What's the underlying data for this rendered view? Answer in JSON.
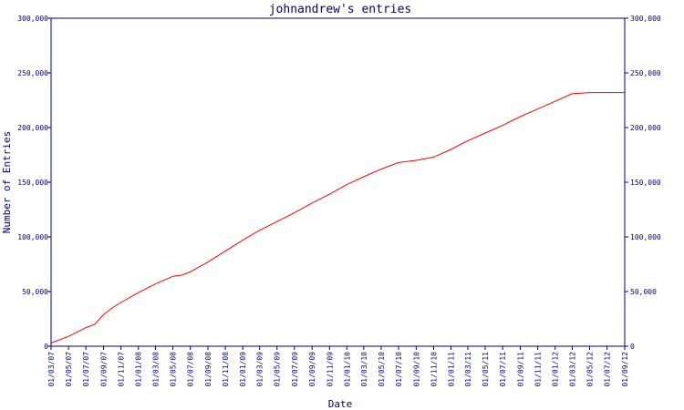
{
  "chart_data": {
    "type": "line",
    "title": "johnandrew's entries",
    "xlabel": "Date",
    "ylabel": "Number of Entries",
    "ylim": [
      0,
      300000
    ],
    "y_ticks": [
      "0",
      "50,000",
      "100,000",
      "150,000",
      "200,000",
      "250,000",
      "300,000"
    ],
    "y_tick_values": [
      0,
      50000,
      100000,
      150000,
      200000,
      250000,
      300000
    ],
    "x_ticks": [
      "01/03/07",
      "01/05/07",
      "01/07/07",
      "01/09/07",
      "01/11/07",
      "01/01/08",
      "01/03/08",
      "01/05/08",
      "01/07/08",
      "01/09/08",
      "01/11/08",
      "01/01/09",
      "01/03/09",
      "01/05/09",
      "01/07/09",
      "01/09/09",
      "01/11/09",
      "01/01/10",
      "01/03/10",
      "01/05/10",
      "01/07/10",
      "01/09/10",
      "01/11/10",
      "01/01/11",
      "01/03/11",
      "01/05/11",
      "01/07/11",
      "01/09/11",
      "01/11/11",
      "01/01/12",
      "01/03/12",
      "01/05/12",
      "01/07/12",
      "01/09/12"
    ],
    "grid": false,
    "colors": {
      "line": "#ff0000",
      "axis": "#000080",
      "text": "#000080",
      "background": "#ffffff"
    },
    "series": [
      {
        "x": [
          "01/03/07",
          "01/05/07",
          "01/07/07",
          "01/08/07",
          "01/09/07",
          "01/10/07",
          "01/11/07",
          "01/01/08",
          "01/03/08",
          "01/05/08",
          "01/06/08",
          "01/07/08",
          "01/09/08",
          "01/11/08",
          "01/01/09",
          "01/03/09",
          "01/05/09",
          "01/07/09",
          "01/09/09",
          "01/11/09",
          "01/01/10",
          "01/03/10",
          "01/05/10",
          "01/07/10",
          "01/09/10",
          "01/11/10",
          "01/01/11",
          "01/03/11",
          "01/05/11",
          "01/07/11",
          "01/09/11",
          "01/11/11",
          "01/01/12",
          "01/03/12",
          "01/05/12",
          "01/07/12",
          "01/09/12"
        ],
        "values": [
          3000,
          9000,
          17000,
          20000,
          29000,
          35000,
          40000,
          49000,
          57000,
          64000,
          65000,
          68000,
          77000,
          87000,
          97000,
          106000,
          114000,
          122000,
          131000,
          139000,
          148000,
          155000,
          162000,
          168000,
          170000,
          173000,
          180000,
          188000,
          195000,
          202000,
          210000,
          217000,
          224000,
          231000,
          232000,
          232000,
          232000
        ]
      }
    ]
  }
}
